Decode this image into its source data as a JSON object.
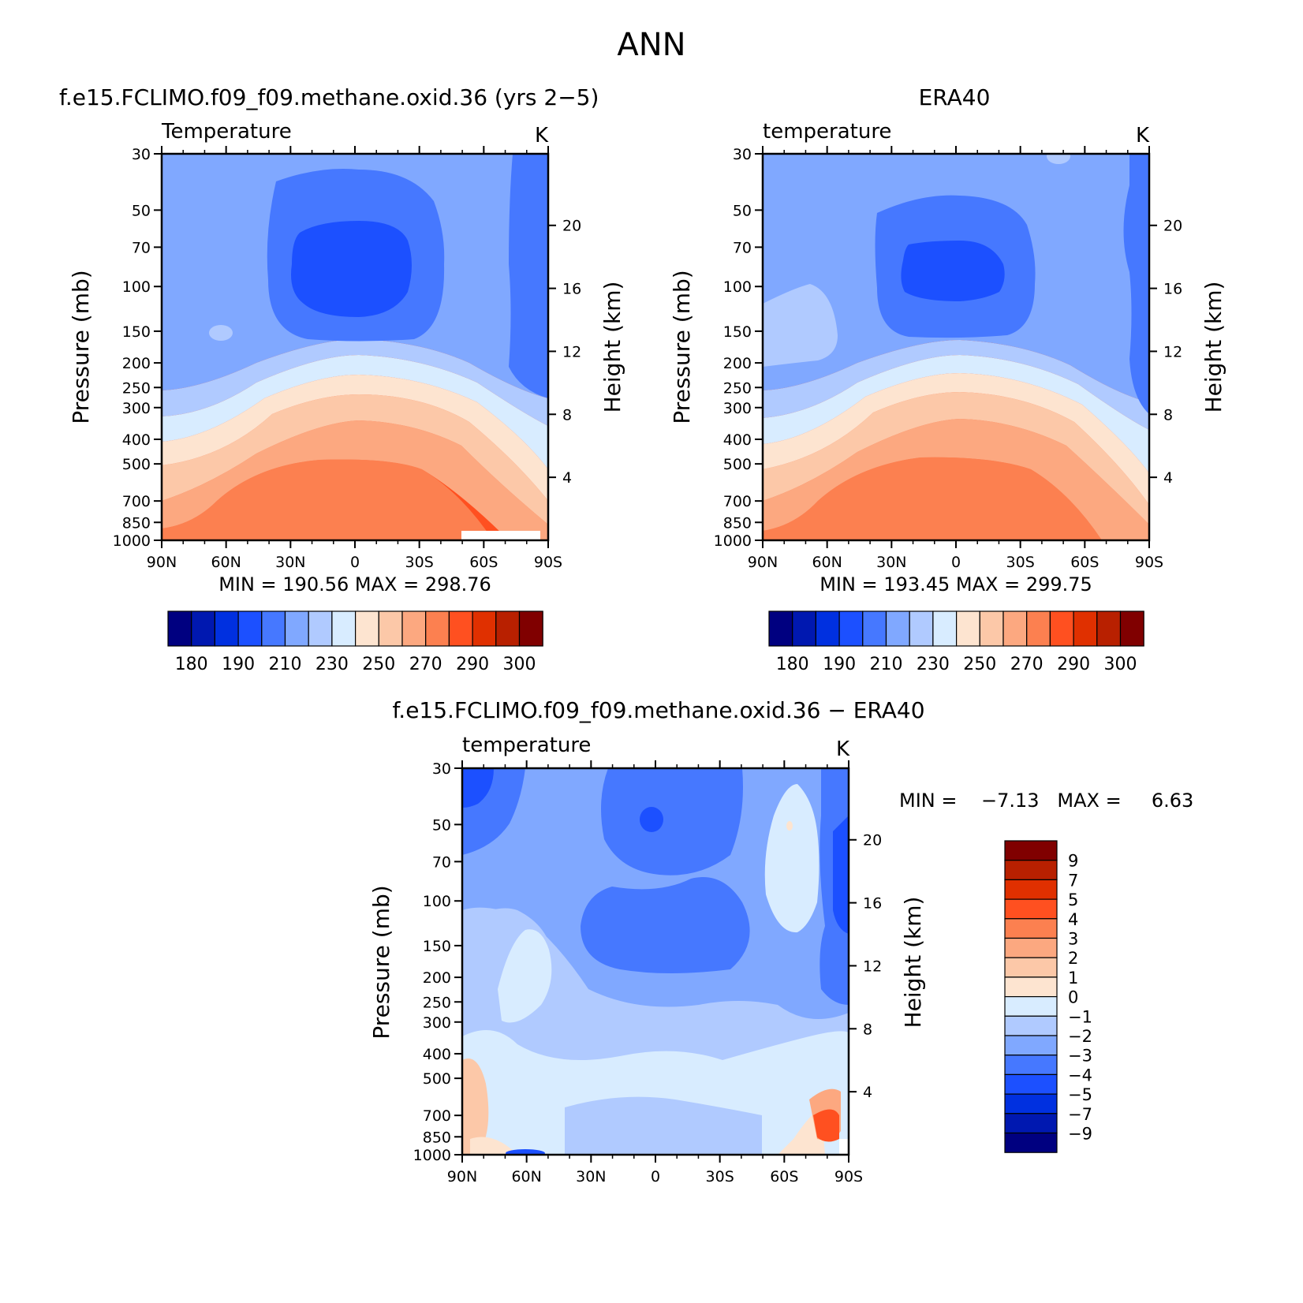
{
  "figure": {
    "title": "ANN"
  },
  "colors": {
    "abs_palette": [
      "#000080",
      "#0018b0",
      "#0030e0",
      "#1c50ff",
      "#4678ff",
      "#80a8ff",
      "#b0caff",
      "#d8ecff",
      "#fde4d0",
      "#fcc8a8",
      "#fca880",
      "#fc8050",
      "#ff5020",
      "#e03000",
      "#b82000",
      "#800000"
    ],
    "diff_palette": [
      "#000080",
      "#0018b0",
      "#0030e0",
      "#1c50ff",
      "#4678ff",
      "#80a8ff",
      "#b0caff",
      "#d8ecff",
      "#fde4d0",
      "#fcc8a8",
      "#fca880",
      "#fc8050",
      "#ff5020",
      "#e03000",
      "#b82000",
      "#800000"
    ]
  },
  "panels": [
    {
      "title": "f.e15.FCLIMO.f09_f09.methane.oxid.36 (yrs 2−5)",
      "var_label": "Temperature",
      "units": "K",
      "stats": "MIN = 190.56   MAX = 298.76",
      "ylabel": "Pressure (mb)",
      "ylabel_right": "Height (km)"
    },
    {
      "title": "ERA40",
      "var_label": "temperature",
      "units": "K",
      "stats": "MIN = 193.45   MAX = 299.75",
      "ylabel": "Pressure (mb)",
      "ylabel_right": "Height (km)"
    },
    {
      "title": "f.e15.FCLIMO.f09_f09.methane.oxid.36 − ERA40",
      "var_label": "temperature",
      "units": "K",
      "stats": "MIN =    −7.13   MAX =     6.63",
      "ylabel": "Pressure (mb)",
      "ylabel_right": "Height (km)"
    }
  ],
  "chart_data": [
    {
      "type": "heatmap",
      "title": "f.e15.FCLIMO.f09_f09.methane.oxid.36 (yrs 2−5)",
      "subtitle": "Temperature",
      "units": "K",
      "x_ticks": [
        "90N",
        "60N",
        "30N",
        "0",
        "30S",
        "60S",
        "90S"
      ],
      "x_range": [
        90,
        -90
      ],
      "y_ticks": [
        "30",
        "50",
        "70",
        "100",
        "150",
        "200",
        "250",
        "300",
        "400",
        "500",
        "700",
        "850",
        "1000"
      ],
      "y_range": [
        1000,
        30
      ],
      "y_scale": "log",
      "y2_ticks": [
        "4",
        "8",
        "12",
        "16",
        "20"
      ],
      "contour_levels": [
        180,
        190,
        210,
        230,
        250,
        270,
        290,
        300
      ],
      "min": 190.56,
      "max": 298.76
    },
    {
      "type": "heatmap",
      "title": "ERA40",
      "subtitle": "temperature",
      "units": "K",
      "x_ticks": [
        "90N",
        "60N",
        "30N",
        "0",
        "30S",
        "60S",
        "90S"
      ],
      "x_range": [
        90,
        -90
      ],
      "y_ticks": [
        "30",
        "50",
        "70",
        "100",
        "150",
        "200",
        "250",
        "300",
        "400",
        "500",
        "700",
        "850",
        "1000"
      ],
      "y_range": [
        1000,
        30
      ],
      "y_scale": "log",
      "y2_ticks": [
        "4",
        "8",
        "12",
        "16",
        "20"
      ],
      "contour_levels": [
        180,
        190,
        210,
        230,
        250,
        270,
        290,
        300
      ],
      "min": 193.45,
      "max": 299.75
    },
    {
      "type": "heatmap",
      "title": "f.e15.FCLIMO.f09_f09.methane.oxid.36 − ERA40",
      "subtitle": "temperature",
      "units": "K",
      "x_ticks": [
        "90N",
        "60N",
        "30N",
        "0",
        "30S",
        "60S",
        "90S"
      ],
      "x_range": [
        90,
        -90
      ],
      "y_ticks": [
        "30",
        "50",
        "70",
        "100",
        "150",
        "200",
        "250",
        "300",
        "400",
        "500",
        "700",
        "850",
        "1000"
      ],
      "y_range": [
        1000,
        30
      ],
      "y_scale": "log",
      "y2_ticks": [
        "4",
        "8",
        "12",
        "16",
        "20"
      ],
      "contour_levels": [
        -9,
        -7,
        -5,
        -4,
        -3,
        -2,
        -1,
        0,
        1,
        2,
        3,
        4,
        5,
        7,
        9
      ],
      "min": -7.13,
      "max": 6.63
    }
  ],
  "colorbars": {
    "abs_labels": [
      "180",
      "190",
      "210",
      "230",
      "250",
      "270",
      "290",
      "300"
    ],
    "diff_labels": [
      "9",
      "7",
      "5",
      "4",
      "3",
      "2",
      "1",
      "0",
      "−1",
      "−2",
      "−3",
      "−4",
      "−5",
      "−7",
      "−9"
    ]
  }
}
